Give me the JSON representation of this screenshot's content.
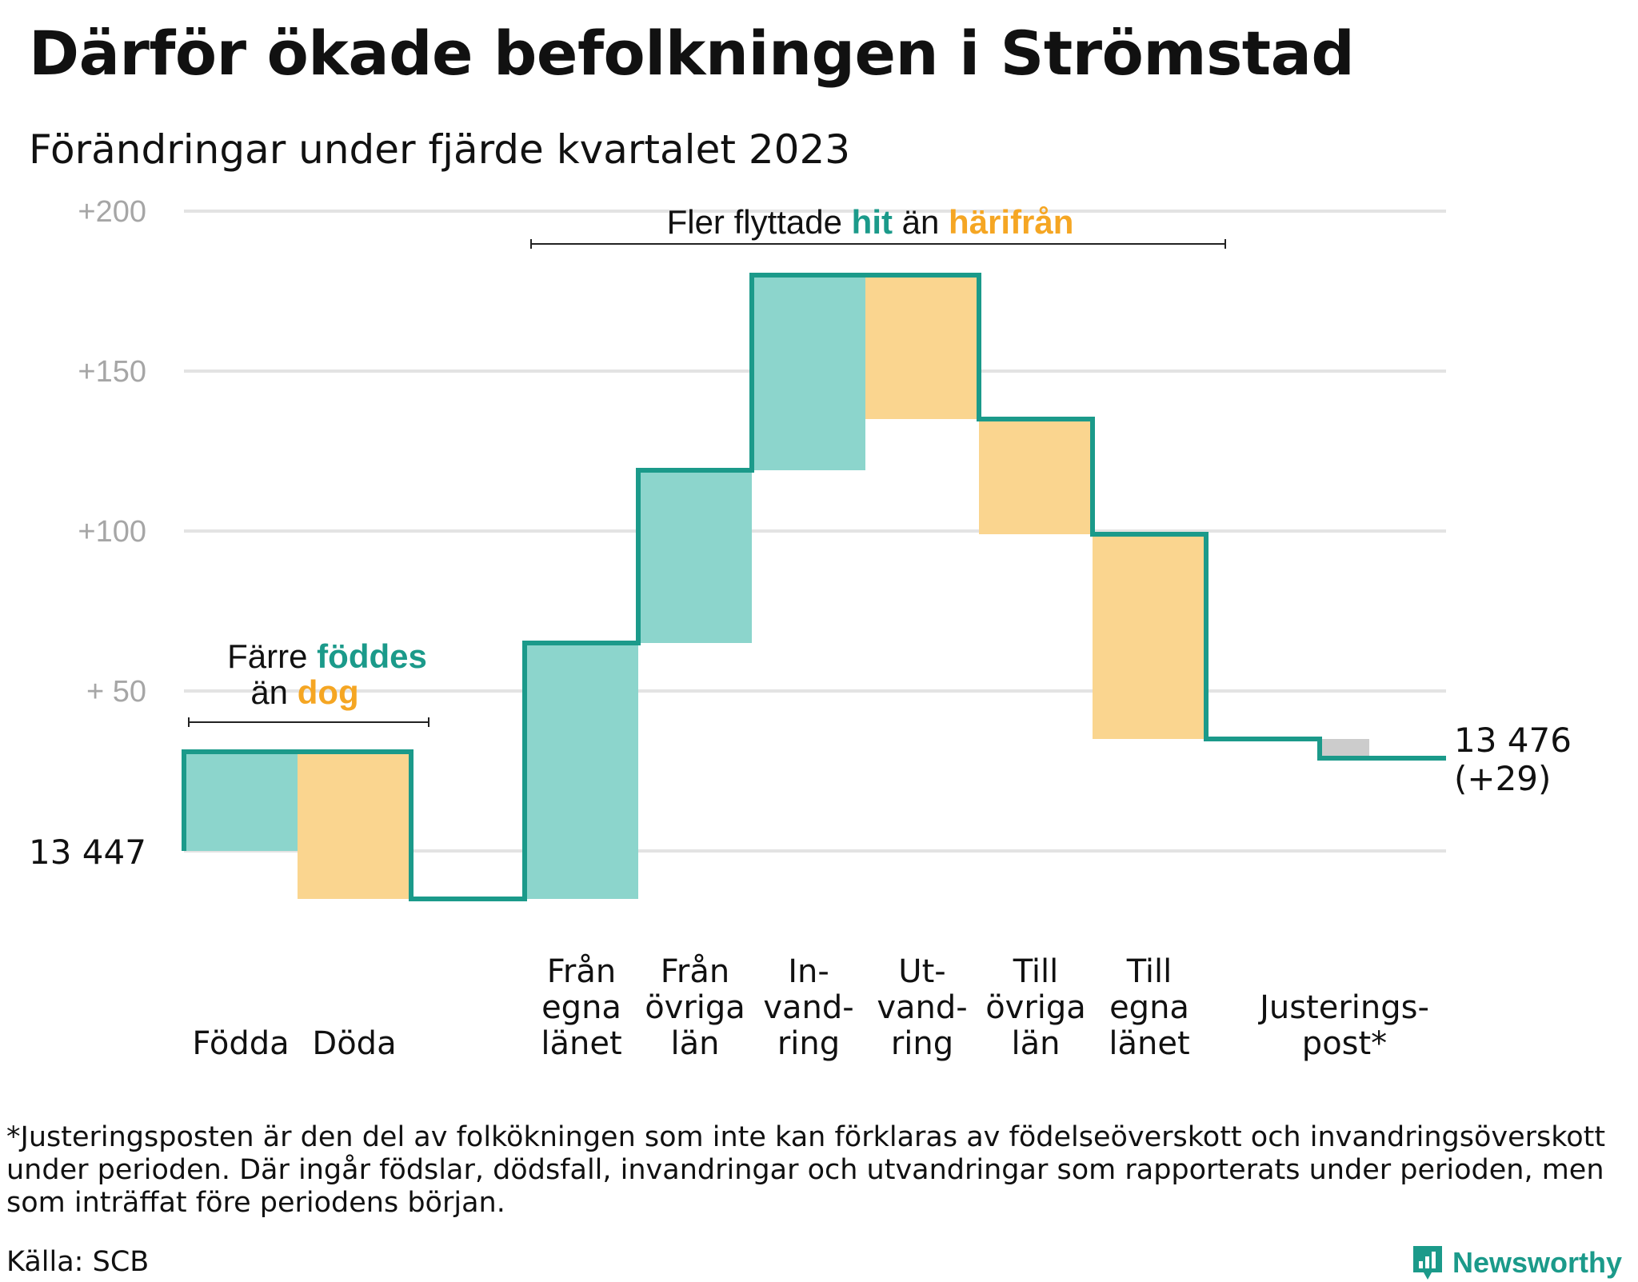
{
  "title": "Därför ökade befolkningen i Strömstad",
  "subtitle": "Förändringar under fjärde kvartalet 2023",
  "colors": {
    "increase": "#8cd5cc",
    "decrease": "#fad58f",
    "adjust": "#cccccc",
    "line": "#1b9a8a",
    "grid": "#e3e3e3",
    "accent_orange": "#f5a623"
  },
  "chart_data": {
    "type": "waterfall",
    "start_label": "13  447",
    "start_value": 13447,
    "end_label": "13 476",
    "end_change": "(+29)",
    "ylim": [
      -15,
      200
    ],
    "yticks": [
      {
        "value": 200,
        "label": "+200"
      },
      {
        "value": 150,
        "label": "+150"
      },
      {
        "value": 100,
        "label": "+100"
      },
      {
        "value": 50,
        "label": "+  50"
      }
    ],
    "steps": [
      {
        "label": "Födda",
        "value": 31,
        "kind": "increase"
      },
      {
        "label": "Döda",
        "value": -46,
        "kind": "decrease"
      },
      {
        "label": "Från egna länet",
        "value": 80,
        "kind": "increase"
      },
      {
        "label": "Från övriga län",
        "value": 54,
        "kind": "increase"
      },
      {
        "label": "Invandring",
        "value": 61,
        "kind": "increase"
      },
      {
        "label": "Utvandring",
        "value": -45,
        "kind": "decrease"
      },
      {
        "label": "Till övriga län",
        "value": -36,
        "kind": "decrease"
      },
      {
        "label": "Till egna länet",
        "value": -64,
        "kind": "decrease"
      },
      {
        "label": "Justeringspost*",
        "value": -6,
        "kind": "adjust"
      }
    ],
    "category_labels": [
      {
        "lines": [
          "Födda"
        ]
      },
      {
        "lines": [
          "Döda"
        ]
      },
      {
        "lines": [
          "Från",
          "egna",
          "länet"
        ]
      },
      {
        "lines": [
          "Från",
          "övriga",
          "län"
        ]
      },
      {
        "lines": [
          "In-",
          "vand-",
          "ring"
        ]
      },
      {
        "lines": [
          "Ut-",
          "vand-",
          "ring"
        ]
      },
      {
        "lines": [
          "Till",
          "övriga",
          "län"
        ]
      },
      {
        "lines": [
          "Till",
          "egna",
          "länet"
        ]
      },
      {
        "lines": [
          "Justerings-",
          "post*"
        ]
      }
    ],
    "annotations": {
      "births": {
        "line1": "Färre",
        "line1_hl": "föddes",
        "line2": "än",
        "line2_hl": "dog"
      },
      "migration": {
        "t1": "Fler flyttade",
        "hl1": "hit",
        "t2": "än",
        "hl2": "härifrån"
      }
    }
  },
  "footnote": "*Justeringsposten är den del av folkökningen som inte kan förklaras av födelseöverskott och invandringsöverskott under perioden. Där ingår födslar, dödsfall, invandringar och utvandringar som rapporterats under perioden, men som inträffat före periodens början.",
  "source": "Källa: SCB",
  "brand": "Newsworthy"
}
